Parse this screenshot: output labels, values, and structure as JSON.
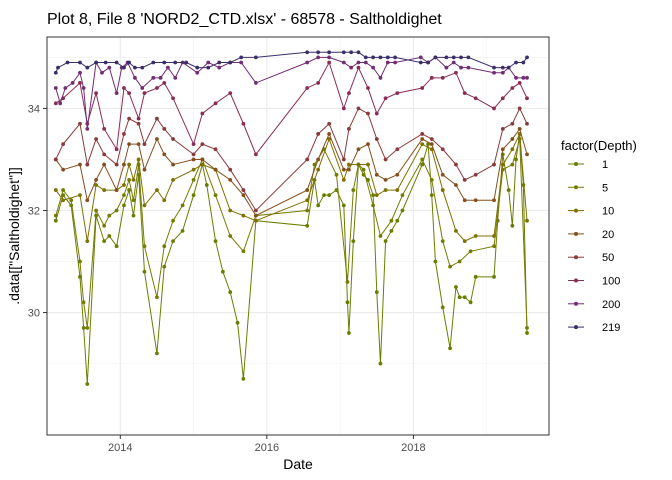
{
  "chart_data": {
    "type": "line",
    "title": "Plot 8, File 8 'NORD2_CTD.xlsx' - 68578  -  Saltholdighet",
    "xlabel": "Date",
    "ylabel": ".data[[\"Saltholdighet\"]]",
    "x_ticks": [
      "2014",
      "2016",
      "2018"
    ],
    "y_ticks": [
      "30",
      "32",
      "34"
    ],
    "xlim": [
      2013.0,
      2019.85
    ],
    "ylim": [
      27.6,
      35.4
    ],
    "legend_title": "factor(Depth)",
    "legend_position": "right",
    "grid": true,
    "series": [
      {
        "name": "1",
        "color": "#6b7d00",
        "x": [
          2013.12,
          2013.22,
          2013.33,
          2013.45,
          2013.5,
          2013.55,
          2013.67,
          2013.78,
          2013.85,
          2013.95,
          2014.05,
          2014.12,
          2014.18,
          2014.25,
          2014.33,
          2014.5,
          2014.6,
          2014.72,
          2014.85,
          2015.0,
          2015.12,
          2015.18,
          2015.3,
          2015.4,
          2015.5,
          2015.6,
          2015.68,
          2015.85,
          2016.55,
          2016.65,
          2016.7,
          2016.78,
          2016.85,
          2016.95,
          2017.05,
          2017.1,
          2017.12,
          2017.18,
          2017.25,
          2017.32,
          2017.38,
          2017.45,
          2017.5,
          2017.55,
          2017.62,
          2017.7,
          2017.78,
          2017.85,
          2018.12,
          2018.2,
          2018.25,
          2018.3,
          2018.4,
          2018.5,
          2018.58,
          2018.63,
          2018.7,
          2018.78,
          2018.85,
          2019.1,
          2019.15,
          2019.22,
          2019.3,
          2019.35,
          2019.4,
          2019.45,
          2019.5,
          2019.55
        ],
        "y": [
          31.8,
          32.3,
          32.1,
          30.7,
          29.7,
          28.6,
          31.9,
          31.4,
          31.5,
          31.3,
          32.1,
          32.4,
          31.9,
          32.7,
          30.8,
          29.2,
          30.9,
          31.4,
          31.6,
          32.3,
          32.9,
          32.5,
          31.4,
          30.8,
          30.4,
          29.8,
          28.7,
          31.8,
          31.7,
          32.6,
          32.1,
          32.3,
          32.3,
          32.4,
          32.1,
          30.2,
          29.6,
          31.4,
          32.9,
          32.7,
          32.6,
          32.3,
          30.4,
          29.0,
          31.4,
          31.6,
          31.8,
          32.0,
          32.9,
          33.3,
          32.3,
          31.0,
          30.1,
          29.3,
          30.5,
          30.3,
          30.3,
          30.2,
          30.7,
          30.7,
          31.8,
          33.1,
          32.4,
          31.7,
          33.0,
          33.5,
          32.5,
          29.6
        ]
      },
      {
        "name": "5",
        "color": "#757d00",
        "x": [
          2013.12,
          2013.22,
          2013.33,
          2013.45,
          2013.5,
          2013.55,
          2013.67,
          2013.78,
          2013.85,
          2013.95,
          2014.05,
          2014.12,
          2014.18,
          2014.25,
          2014.33,
          2014.5,
          2014.6,
          2014.72,
          2014.85,
          2015.0,
          2015.12,
          2015.3,
          2015.5,
          2015.68,
          2015.85,
          2016.55,
          2016.65,
          2016.78,
          2016.95,
          2017.1,
          2017.18,
          2017.25,
          2017.32,
          2017.45,
          2017.55,
          2017.7,
          2017.85,
          2018.12,
          2018.25,
          2018.4,
          2018.5,
          2018.63,
          2018.78,
          2019.1,
          2019.22,
          2019.35,
          2019.45,
          2019.55
        ],
        "y": [
          31.9,
          32.4,
          32.2,
          31.0,
          30.2,
          29.7,
          32.0,
          31.7,
          31.9,
          32.0,
          32.3,
          32.6,
          32.2,
          32.9,
          31.3,
          30.3,
          31.3,
          31.8,
          32.1,
          32.6,
          33.0,
          32.3,
          31.5,
          31.2,
          31.9,
          32.0,
          32.9,
          33.2,
          32.7,
          30.6,
          32.4,
          32.9,
          32.8,
          32.1,
          31.5,
          31.8,
          32.3,
          33.0,
          32.6,
          31.4,
          30.9,
          31.0,
          31.2,
          31.3,
          32.8,
          32.9,
          33.4,
          29.7
        ]
      },
      {
        "name": "10",
        "color": "#7f7000",
        "x": [
          2013.12,
          2013.22,
          2013.45,
          2013.55,
          2013.67,
          2013.78,
          2013.95,
          2014.05,
          2014.12,
          2014.18,
          2014.25,
          2014.33,
          2014.5,
          2014.6,
          2014.72,
          2015.0,
          2015.12,
          2015.3,
          2015.5,
          2015.68,
          2015.85,
          2016.55,
          2016.7,
          2016.85,
          2017.05,
          2017.12,
          2017.25,
          2017.38,
          2017.5,
          2017.62,
          2017.78,
          2018.12,
          2018.25,
          2018.4,
          2018.58,
          2018.7,
          2018.85,
          2019.1,
          2019.22,
          2019.35,
          2019.45,
          2019.55
        ],
        "y": [
          32.4,
          32.2,
          32.3,
          31.4,
          32.5,
          32.4,
          32.4,
          32.5,
          32.9,
          32.6,
          33.0,
          32.1,
          32.4,
          32.2,
          32.6,
          32.8,
          32.9,
          32.8,
          32.0,
          31.9,
          31.8,
          32.2,
          32.8,
          33.4,
          32.6,
          32.9,
          32.9,
          32.9,
          32.3,
          32.4,
          32.4,
          33.3,
          33.2,
          32.4,
          31.6,
          31.4,
          31.5,
          31.5,
          32.9,
          33.2,
          33.5,
          31.8
        ]
      },
      {
        "name": "20",
        "color": "#85501d",
        "x": [
          2013.12,
          2013.22,
          2013.45,
          2013.55,
          2013.67,
          2013.78,
          2013.95,
          2014.05,
          2014.12,
          2014.25,
          2014.33,
          2014.5,
          2014.6,
          2014.72,
          2015.0,
          2015.12,
          2015.3,
          2015.5,
          2015.68,
          2015.85,
          2016.55,
          2016.7,
          2016.85,
          2017.05,
          2017.12,
          2017.25,
          2017.38,
          2017.5,
          2017.62,
          2017.78,
          2018.12,
          2018.25,
          2018.4,
          2018.58,
          2018.7,
          2018.85,
          2019.1,
          2019.22,
          2019.35,
          2019.45,
          2019.55
        ],
        "y": [
          33.0,
          32.8,
          32.9,
          32.2,
          32.6,
          32.9,
          32.4,
          32.9,
          33.3,
          33.3,
          32.8,
          33.4,
          33.1,
          32.9,
          33.0,
          33.0,
          32.8,
          32.6,
          32.3,
          31.9,
          32.4,
          33.0,
          33.5,
          32.8,
          32.8,
          33.2,
          33.3,
          32.7,
          32.6,
          32.7,
          33.4,
          33.3,
          32.7,
          32.5,
          32.2,
          32.2,
          32.2,
          33.2,
          33.4,
          33.6,
          33.1
        ]
      },
      {
        "name": "50",
        "color": "#8a3a3a",
        "x": [
          2013.12,
          2013.22,
          2013.45,
          2013.55,
          2013.67,
          2013.78,
          2013.95,
          2014.05,
          2014.12,
          2014.25,
          2014.33,
          2014.5,
          2014.6,
          2014.72,
          2015.0,
          2015.12,
          2015.3,
          2015.5,
          2015.68,
          2015.85,
          2016.55,
          2016.7,
          2016.85,
          2017.05,
          2017.12,
          2017.25,
          2017.38,
          2017.5,
          2017.62,
          2017.78,
          2018.12,
          2018.25,
          2018.4,
          2018.58,
          2018.7,
          2018.85,
          2019.1,
          2019.22,
          2019.35,
          2019.45,
          2019.55
        ],
        "y": [
          33.0,
          33.3,
          33.7,
          32.9,
          33.4,
          33.1,
          32.9,
          33.5,
          33.8,
          33.7,
          33.3,
          33.8,
          33.6,
          33.4,
          33.1,
          33.3,
          33.2,
          32.8,
          32.4,
          32.0,
          33.0,
          33.5,
          33.7,
          33.0,
          33.6,
          34.0,
          33.9,
          33.4,
          33.0,
          33.2,
          33.5,
          33.4,
          33.2,
          32.9,
          32.6,
          32.7,
          32.9,
          33.6,
          33.7,
          34.0,
          33.7
        ]
      },
      {
        "name": "100",
        "color": "#8b2c55",
        "x": [
          2013.12,
          2013.22,
          2013.45,
          2013.55,
          2013.67,
          2013.78,
          2013.95,
          2014.05,
          2014.12,
          2014.25,
          2014.33,
          2014.5,
          2014.6,
          2014.72,
          2015.0,
          2015.12,
          2015.3,
          2015.5,
          2015.68,
          2015.85,
          2016.55,
          2016.7,
          2016.85,
          2017.05,
          2017.12,
          2017.25,
          2017.38,
          2017.5,
          2017.62,
          2017.78,
          2018.12,
          2018.25,
          2018.4,
          2018.58,
          2018.7,
          2018.85,
          2019.1,
          2019.22,
          2019.35,
          2019.45,
          2019.55
        ],
        "y": [
          34.1,
          34.2,
          34.5,
          33.7,
          34.3,
          33.6,
          33.2,
          34.4,
          34.3,
          33.8,
          34.3,
          34.4,
          34.5,
          34.2,
          33.3,
          33.9,
          34.1,
          34.3,
          33.7,
          33.1,
          34.4,
          34.5,
          34.9,
          34.0,
          34.3,
          34.8,
          34.4,
          33.9,
          34.2,
          34.3,
          34.4,
          34.6,
          34.6,
          34.7,
          34.3,
          34.2,
          34.0,
          34.2,
          34.4,
          34.5,
          34.2
        ]
      },
      {
        "name": "200",
        "color": "#722d73",
        "x": [
          2013.12,
          2013.18,
          2013.25,
          2013.35,
          2013.45,
          2013.5,
          2013.55,
          2013.67,
          2013.75,
          2013.85,
          2013.95,
          2014.02,
          2014.1,
          2014.2,
          2014.3,
          2014.45,
          2014.55,
          2014.65,
          2014.75,
          2014.85,
          2015.05,
          2015.2,
          2015.35,
          2015.5,
          2015.65,
          2015.85,
          2016.55,
          2016.7,
          2016.85,
          2017.05,
          2017.15,
          2017.25,
          2017.35,
          2017.45,
          2017.55,
          2017.65,
          2017.75,
          2018.1,
          2018.2,
          2018.3,
          2018.45,
          2018.55,
          2018.65,
          2018.75,
          2019.1,
          2019.22,
          2019.3,
          2019.4,
          2019.5,
          2019.55
        ],
        "y": [
          34.4,
          34.1,
          34.4,
          34.5,
          34.7,
          34.4,
          33.6,
          34.9,
          34.7,
          34.8,
          34.3,
          34.8,
          34.9,
          34.6,
          34.4,
          34.6,
          34.6,
          34.8,
          34.6,
          34.9,
          34.7,
          34.9,
          34.8,
          34.9,
          34.9,
          34.5,
          34.9,
          35.0,
          35.0,
          34.9,
          34.8,
          34.9,
          34.9,
          34.8,
          34.6,
          34.9,
          34.9,
          35.0,
          34.9,
          35.0,
          34.8,
          34.9,
          34.8,
          34.8,
          34.7,
          34.7,
          34.8,
          34.6,
          34.6,
          34.6
        ]
      },
      {
        "name": "219",
        "color": "#3b2f6a",
        "x": [
          2013.12,
          2013.15,
          2013.28,
          2013.45,
          2013.55,
          2013.67,
          2013.8,
          2013.95,
          2014.05,
          2014.12,
          2014.2,
          2014.3,
          2014.45,
          2014.6,
          2014.75,
          2014.9,
          2015.05,
          2015.2,
          2015.35,
          2015.5,
          2015.65,
          2015.85,
          2016.55,
          2016.7,
          2016.85,
          2017.05,
          2017.15,
          2017.25,
          2017.35,
          2017.45,
          2017.55,
          2017.65,
          2017.75,
          2018.1,
          2018.2,
          2018.3,
          2018.45,
          2018.55,
          2018.65,
          2018.75,
          2019.1,
          2019.22,
          2019.3,
          2019.4,
          2019.5,
          2019.55
        ],
        "y": [
          34.7,
          34.8,
          34.9,
          34.9,
          34.8,
          34.9,
          34.9,
          34.9,
          34.8,
          34.9,
          34.8,
          34.8,
          34.9,
          34.9,
          34.9,
          34.9,
          34.8,
          34.8,
          34.9,
          34.9,
          35.0,
          35.0,
          35.1,
          35.1,
          35.1,
          35.1,
          35.1,
          35.1,
          35.0,
          35.0,
          35.0,
          35.0,
          35.0,
          34.9,
          34.9,
          35.0,
          35.0,
          35.0,
          35.0,
          35.0,
          34.8,
          34.8,
          34.8,
          34.9,
          34.9,
          35.0
        ]
      }
    ]
  }
}
